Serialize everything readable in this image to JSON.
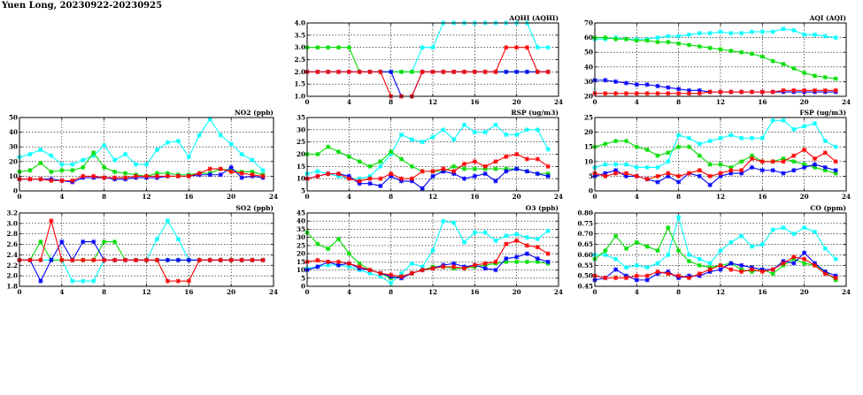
{
  "page": {
    "title": "Yuen Long, 20230922-20230925"
  },
  "colors": {
    "cyan": "#00ffff",
    "green": "#00dd00",
    "blue": "#0000ff",
    "red": "#ff0000"
  },
  "chart_data": [
    {
      "id": "aqhi",
      "type": "line",
      "title": "AQHI (AQHI)",
      "xlim": [
        0,
        24
      ],
      "xticks": [
        0,
        4,
        8,
        12,
        16,
        20,
        24
      ],
      "ylim": [
        1.0,
        4.0
      ],
      "yticks": [
        "1.0",
        "1.5",
        "2.0",
        "2.5",
        "3.0",
        "3.5",
        "4.0"
      ],
      "grid": true,
      "series": [
        {
          "color": "cyan",
          "values": [
            2,
            2,
            2,
            2,
            2,
            2,
            2,
            2,
            2,
            2,
            2,
            3,
            3,
            4,
            4,
            4,
            4,
            4,
            4,
            4,
            4,
            4,
            3,
            3
          ]
        },
        {
          "color": "green",
          "values": [
            3,
            3,
            3,
            3,
            3,
            2,
            2,
            2,
            2,
            2,
            2,
            2,
            2,
            2,
            2,
            2,
            2,
            2,
            2,
            2,
            2,
            2,
            2,
            2
          ]
        },
        {
          "color": "blue",
          "values": [
            2,
            2,
            2,
            2,
            2,
            2,
            2,
            2,
            2,
            1,
            1,
            2,
            2,
            2,
            2,
            2,
            2,
            2,
            2,
            2,
            2,
            2,
            2,
            2
          ]
        },
        {
          "color": "red",
          "values": [
            2,
            2,
            2,
            2,
            2,
            2,
            2,
            2,
            1,
            1,
            1,
            2,
            2,
            2,
            2,
            2,
            2,
            2,
            2,
            3,
            3,
            3,
            2,
            2
          ]
        }
      ]
    },
    {
      "id": "aqi",
      "type": "line",
      "title": "AQI (AQI)",
      "xlim": [
        0,
        24
      ],
      "xticks": [
        0,
        4,
        8,
        12,
        16,
        20,
        24
      ],
      "ylim": [
        20,
        70
      ],
      "yticks": [
        "20",
        "30",
        "40",
        "50",
        "60",
        "70"
      ],
      "grid": true,
      "series": [
        {
          "color": "cyan",
          "values": [
            59,
            59,
            60,
            59,
            59,
            59,
            60,
            61,
            61,
            62,
            63,
            63,
            64,
            63,
            63,
            64,
            64,
            64,
            66,
            65,
            62,
            62,
            61,
            60
          ]
        },
        {
          "color": "green",
          "values": [
            60,
            60,
            59,
            59,
            58,
            58,
            57,
            57,
            56,
            55,
            54,
            53,
            52,
            51,
            50,
            49,
            47,
            44,
            42,
            39,
            36,
            34,
            33,
            32
          ]
        },
        {
          "color": "blue",
          "values": [
            31,
            31,
            30,
            29,
            28,
            28,
            27,
            26,
            25,
            24,
            24,
            23,
            23,
            23,
            23,
            23,
            23,
            23,
            23,
            23,
            23,
            23,
            23,
            23
          ]
        },
        {
          "color": "red",
          "values": [
            22,
            22,
            22,
            22,
            22,
            22,
            22,
            22,
            22,
            22,
            22,
            23,
            23,
            23,
            23,
            23,
            23,
            23,
            24,
            24,
            24,
            24,
            24,
            24
          ]
        }
      ]
    },
    {
      "id": "no2",
      "type": "line",
      "title": "NO2 (ppb)",
      "xlim": [
        0,
        24
      ],
      "xticks": [
        0,
        4,
        8,
        12,
        16,
        20,
        24
      ],
      "ylim": [
        0,
        50
      ],
      "yticks": [
        "0",
        "10",
        "20",
        "30",
        "40",
        "50"
      ],
      "grid": true,
      "series": [
        {
          "color": "cyan",
          "values": [
            23,
            25,
            28,
            24,
            18,
            18,
            21,
            24,
            31,
            21,
            25,
            18,
            18,
            28,
            33,
            34,
            23,
            38,
            49,
            38,
            32,
            25,
            21,
            14
          ]
        },
        {
          "color": "green",
          "values": [
            13,
            14,
            19,
            13,
            14,
            14,
            16,
            26,
            16,
            13,
            12,
            11,
            10,
            12,
            12,
            11,
            11,
            12,
            12,
            15,
            14,
            13,
            13,
            11
          ]
        },
        {
          "color": "blue",
          "values": [
            8,
            8,
            8,
            8,
            7,
            6,
            9,
            9,
            9,
            8,
            8,
            9,
            9,
            9,
            10,
            10,
            10,
            11,
            11,
            11,
            16,
            9,
            10,
            9
          ]
        },
        {
          "color": "red",
          "values": [
            8,
            8,
            8,
            7,
            7,
            7,
            10,
            10,
            9,
            9,
            9,
            10,
            10,
            10,
            10,
            10,
            10,
            12,
            15,
            15,
            13,
            12,
            11,
            10
          ]
        }
      ]
    },
    {
      "id": "rsp",
      "type": "line",
      "title": "RSP (ug/m3)",
      "xlim": [
        0,
        24
      ],
      "xticks": [
        0,
        4,
        8,
        12,
        16,
        20,
        24
      ],
      "ylim": [
        5,
        35
      ],
      "yticks": [
        "5",
        "10",
        "15",
        "20",
        "25",
        "30",
        "35"
      ],
      "grid": true,
      "series": [
        {
          "color": "cyan",
          "values": [
            12,
            13,
            12,
            11,
            10,
            10,
            11,
            15,
            20,
            28,
            26,
            25,
            27,
            30,
            26,
            32,
            29,
            29,
            32,
            28,
            28,
            30,
            30,
            22
          ]
        },
        {
          "color": "green",
          "values": [
            20,
            20,
            23,
            21,
            19,
            17,
            15,
            17,
            21,
            18,
            15,
            13,
            13,
            13,
            15,
            14,
            14,
            14,
            14,
            14,
            14,
            13,
            12,
            12
          ]
        },
        {
          "color": "blue",
          "values": [
            10,
            11,
            12,
            12,
            11,
            8,
            8,
            7,
            11,
            9,
            9,
            6,
            11,
            13,
            12,
            10,
            11,
            12,
            9,
            13,
            14,
            13,
            12,
            11
          ]
        },
        {
          "color": "red",
          "values": [
            10,
            11,
            12,
            12,
            10,
            9,
            10,
            10,
            12,
            10,
            10,
            13,
            13,
            14,
            13,
            16,
            17,
            15,
            17,
            19,
            20,
            18,
            18,
            15
          ]
        }
      ]
    },
    {
      "id": "fsp",
      "type": "line",
      "title": "FSP (ug/m3)",
      "xlim": [
        0,
        24
      ],
      "xticks": [
        0,
        4,
        8,
        12,
        16,
        20,
        24
      ],
      "ylim": [
        0,
        25
      ],
      "yticks": [
        "0",
        "5",
        "10",
        "15",
        "20",
        "25"
      ],
      "grid": true,
      "series": [
        {
          "color": "cyan",
          "values": [
            8,
            9,
            9,
            9,
            8,
            8,
            8,
            10,
            19,
            18,
            16,
            17,
            18,
            19,
            18,
            18,
            18,
            24,
            24,
            21,
            22,
            23,
            17,
            15
          ]
        },
        {
          "color": "green",
          "values": [
            15,
            16,
            17,
            17,
            15,
            14,
            12,
            13,
            15,
            15,
            12,
            9,
            9,
            8,
            10,
            12,
            10,
            10,
            11,
            10,
            9,
            8,
            7,
            6
          ]
        },
        {
          "color": "blue",
          "values": [
            5,
            6,
            7,
            5,
            5,
            4,
            3,
            5,
            3,
            6,
            5,
            2,
            5,
            6,
            6,
            8,
            7,
            7,
            6,
            7,
            8,
            9,
            8,
            7
          ]
        },
        {
          "color": "red",
          "values": [
            6,
            5,
            6,
            6,
            5,
            4,
            5,
            6,
            5,
            6,
            7,
            5,
            6,
            7,
            7,
            11,
            10,
            10,
            10,
            12,
            14,
            11,
            13,
            10
          ]
        }
      ]
    },
    {
      "id": "so2",
      "type": "line",
      "title": "SO2 (ppb)",
      "xlim": [
        0,
        24
      ],
      "xticks": [
        0,
        4,
        8,
        12,
        16,
        20,
        24
      ],
      "ylim": [
        1.8,
        3.2
      ],
      "yticks": [
        "1.8",
        "2.0",
        "2.2",
        "2.4",
        "2.6",
        "2.8",
        "3.0",
        "3.2"
      ],
      "grid": true,
      "series": [
        {
          "color": "cyan",
          "values": [
            2.3,
            2.3,
            2.3,
            2.3,
            2.3,
            1.9,
            1.9,
            1.9,
            2.3,
            2.3,
            2.3,
            2.3,
            2.3,
            2.7,
            3.05,
            2.7,
            2.3,
            2.3,
            2.3,
            2.3,
            2.3,
            2.3,
            2.3,
            2.3
          ]
        },
        {
          "color": "green",
          "values": [
            2.3,
            2.3,
            2.65,
            2.3,
            2.3,
            2.3,
            2.3,
            2.3,
            2.65,
            2.65,
            2.3,
            2.3,
            2.3,
            2.3,
            2.3,
            2.3,
            2.3,
            2.3,
            2.3,
            2.3,
            2.3,
            2.3,
            2.3,
            2.3
          ]
        },
        {
          "color": "blue",
          "values": [
            2.3,
            2.3,
            1.9,
            2.3,
            2.65,
            2.3,
            2.65,
            2.65,
            2.3,
            2.3,
            2.3,
            2.3,
            2.3,
            2.3,
            2.3,
            2.3,
            2.3,
            2.3,
            2.3,
            2.3,
            2.3,
            2.3,
            2.3,
            2.3
          ]
        },
        {
          "color": "red",
          "values": [
            2.3,
            2.3,
            2.3,
            3.05,
            2.3,
            2.3,
            2.3,
            2.3,
            2.3,
            2.3,
            2.3,
            2.3,
            2.3,
            2.3,
            1.9,
            1.9,
            1.9,
            2.3,
            2.3,
            2.3,
            2.3,
            2.3,
            2.3,
            2.3
          ]
        }
      ]
    },
    {
      "id": "o3",
      "type": "line",
      "title": "O3 (ppb)",
      "xlim": [
        0,
        24
      ],
      "xticks": [
        0,
        4,
        8,
        12,
        16,
        20,
        24
      ],
      "ylim": [
        0,
        45
      ],
      "yticks": [
        "0",
        "5",
        "10",
        "15",
        "20",
        "25",
        "30",
        "35",
        "40",
        "45"
      ],
      "grid": true,
      "series": [
        {
          "color": "cyan",
          "values": [
            11,
            12,
            13,
            13,
            12,
            10,
            8,
            6,
            2,
            8,
            14,
            12,
            22,
            40,
            39,
            27,
            33,
            33,
            28,
            31,
            32,
            30,
            29,
            34
          ]
        },
        {
          "color": "green",
          "values": [
            33,
            26,
            23,
            29,
            20,
            14,
            10,
            8,
            5,
            6,
            8,
            10,
            12,
            12,
            11,
            11,
            12,
            13,
            14,
            15,
            15,
            15,
            15,
            14
          ]
        },
        {
          "color": "blue",
          "values": [
            10,
            12,
            15,
            13,
            14,
            11,
            10,
            8,
            6,
            5,
            8,
            10,
            11,
            13,
            14,
            12,
            13,
            11,
            10,
            17,
            18,
            20,
            17,
            15
          ]
        },
        {
          "color": "red",
          "values": [
            15,
            16,
            15,
            15,
            14,
            12,
            10,
            8,
            7,
            6,
            8,
            10,
            11,
            12,
            12,
            11,
            13,
            14,
            15,
            26,
            28,
            25,
            24,
            20
          ]
        }
      ]
    },
    {
      "id": "co",
      "type": "line",
      "title": "CO (ppm)",
      "xlim": [
        0,
        24
      ],
      "xticks": [
        0,
        4,
        8,
        12,
        16,
        20,
        24
      ],
      "ylim": [
        0.45,
        0.8
      ],
      "yticks": [
        "0.45",
        "0.50",
        "0.55",
        "0.60",
        "0.65",
        "0.70",
        "0.75",
        "0.80"
      ],
      "grid": true,
      "series": [
        {
          "color": "cyan",
          "values": [
            0.6,
            0.6,
            0.58,
            0.54,
            0.55,
            0.54,
            0.56,
            0.6,
            0.78,
            0.6,
            0.58,
            0.56,
            0.62,
            0.66,
            0.69,
            0.64,
            0.65,
            0.72,
            0.73,
            0.7,
            0.73,
            0.71,
            0.63,
            0.58
          ]
        },
        {
          "color": "green",
          "values": [
            0.58,
            0.62,
            0.69,
            0.63,
            0.66,
            0.64,
            0.62,
            0.73,
            0.62,
            0.57,
            0.55,
            0.54,
            0.55,
            0.56,
            0.53,
            0.52,
            0.53,
            0.51,
            0.55,
            0.58,
            0.56,
            0.55,
            0.52,
            0.48
          ]
        },
        {
          "color": "blue",
          "values": [
            0.48,
            0.49,
            0.53,
            0.5,
            0.48,
            0.48,
            0.51,
            0.52,
            0.49,
            0.5,
            0.5,
            0.52,
            0.53,
            0.56,
            0.55,
            0.54,
            0.53,
            0.53,
            0.57,
            0.56,
            0.61,
            0.56,
            0.52,
            0.5
          ]
        },
        {
          "color": "red",
          "values": [
            0.5,
            0.49,
            0.49,
            0.49,
            0.5,
            0.5,
            0.52,
            0.51,
            0.5,
            0.49,
            0.51,
            0.53,
            0.55,
            0.53,
            0.52,
            0.53,
            0.52,
            0.53,
            0.56,
            0.59,
            0.58,
            0.55,
            0.51,
            0.49
          ]
        }
      ]
    }
  ]
}
